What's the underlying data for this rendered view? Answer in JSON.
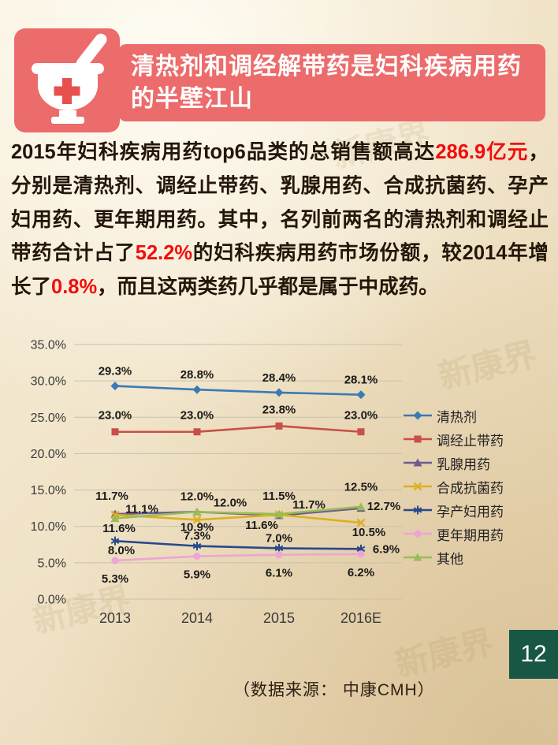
{
  "page": {
    "watermark": "新康界",
    "page_number": "12",
    "source_note": "（数据来源： 中康CMH）",
    "background_color": "#efe1c4",
    "badge_color": "#185744"
  },
  "header": {
    "title_line1": "清热剂和调经解带药是妇科疾病用药",
    "title_line2": "的半壁江山",
    "banner_color": "#ec6b6b",
    "icon": "mortar-pestle-cross-icon"
  },
  "paragraph": {
    "segments": [
      {
        "text": "2015年妇科疾病用药top6品类的总销售额高达",
        "color": "dark"
      },
      {
        "text": "286.9亿元",
        "color": "red"
      },
      {
        "text": "，分别是清热剂、调经止带药、乳腺用药、合成抗菌药、孕产妇用药、更年期用药。其中，名列前两名的清热剂和调经止带药合计占了",
        "color": "dark"
      },
      {
        "text": "52.2%",
        "color": "red"
      },
      {
        "text": "的妇科疾病用药市场份额，较2014年增长了",
        "color": "dark"
      },
      {
        "text": "0.8%",
        "color": "red"
      },
      {
        "text": "，而且这两类药几乎都是属于中成药。",
        "color": "dark"
      }
    ]
  },
  "chart_data": {
    "type": "line",
    "title": "",
    "xlabel": "",
    "ylabel": "",
    "categories": [
      "2013",
      "2014",
      "2015",
      "2016E"
    ],
    "series": [
      {
        "name": "清热剂",
        "values": [
          29.3,
          28.8,
          28.4,
          28.1
        ],
        "color": "#3b7ab5",
        "marker": "diamond"
      },
      {
        "name": "调经止带药",
        "values": [
          23.0,
          23.0,
          23.8,
          23.0
        ],
        "color": "#c94f47",
        "marker": "square"
      },
      {
        "name": "乳腺用药",
        "values": [
          11.7,
          12.0,
          11.5,
          12.5
        ],
        "color": "#6e5a8e",
        "marker": "triangle"
      },
      {
        "name": "合成抗菌药",
        "values": [
          11.6,
          10.9,
          11.6,
          10.5
        ],
        "color": "#dcb022",
        "marker": "x"
      },
      {
        "name": "孕产妇用药",
        "values": [
          8.0,
          7.3,
          7.0,
          6.9
        ],
        "color": "#27498c",
        "marker": "asterisk"
      },
      {
        "name": "更年期用药",
        "values": [
          5.3,
          5.9,
          6.1,
          6.2
        ],
        "color": "#eda6d3",
        "marker": "circle"
      },
      {
        "name": "其他",
        "values": [
          11.1,
          12.0,
          11.7,
          12.7
        ],
        "color": "#97bd58",
        "marker": "triangle"
      }
    ],
    "ylim": [
      0,
      35
    ],
    "ytick_step": 5,
    "ytick_labels": [
      "0.0%",
      "5.0%",
      "10.0%",
      "15.0%",
      "20.0%",
      "25.0%",
      "30.0%",
      "35.0%"
    ],
    "grid": true,
    "data_labels": true,
    "label_format": "percent1",
    "legend_position": "right"
  }
}
